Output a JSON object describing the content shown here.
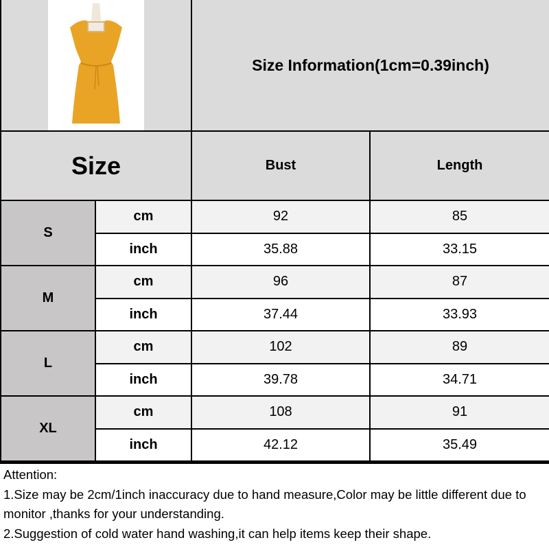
{
  "title": "Size Information(1cm=0.39inch)",
  "header": {
    "size": "Size",
    "bust": "Bust",
    "length": "Length"
  },
  "rows": [
    {
      "size": "S",
      "cm": {
        "unit": "cm",
        "bust": "92",
        "length": "85"
      },
      "inch": {
        "unit": "inch",
        "bust": "35.88",
        "length": "33.15"
      }
    },
    {
      "size": "M",
      "cm": {
        "unit": "cm",
        "bust": "96",
        "length": "87"
      },
      "inch": {
        "unit": "inch",
        "bust": "37.44",
        "length": "33.93"
      }
    },
    {
      "size": "L",
      "cm": {
        "unit": "cm",
        "bust": "102",
        "length": "89"
      },
      "inch": {
        "unit": "inch",
        "bust": "39.78",
        "length": "34.71"
      }
    },
    {
      "size": "XL",
      "cm": {
        "unit": "cm",
        "bust": "108",
        "length": "91"
      },
      "inch": {
        "unit": "inch",
        "bust": "42.12",
        "length": "35.49"
      }
    }
  ],
  "notes": {
    "heading": "Attention:",
    "line1": "1.Size may be 2cm/1inch inaccuracy due to hand measure,Color may be little different due to monitor ,thanks for your understanding.",
    "line2": "2.Suggestion of cold water hand washing,it can help items keep their shape."
  },
  "colors": {
    "dress": "#e9a426",
    "header_bg": "#dcdbdc",
    "size_bg": "#c9c6c7"
  }
}
